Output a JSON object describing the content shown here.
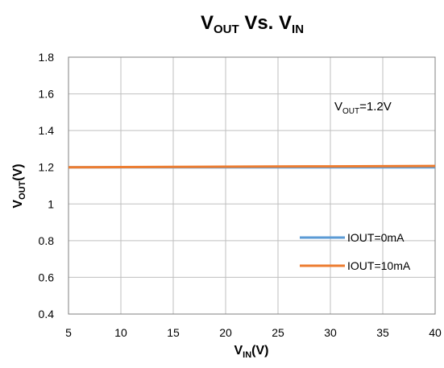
{
  "chart_data": {
    "type": "line",
    "title": {
      "main": "V",
      "sub": "OUT",
      "mid": " Vs. V",
      "sub2": "IN"
    },
    "xlabel": {
      "main": "V",
      "sub": "IN",
      "tail": "(V)"
    },
    "ylabel": {
      "main": "V",
      "sub": "OUT",
      "tail": "(V)"
    },
    "xlim": [
      5,
      40
    ],
    "ylim": [
      0.4,
      1.8
    ],
    "xticks": [
      5,
      10,
      15,
      20,
      25,
      30,
      35,
      40
    ],
    "yticks": [
      0.4,
      0.6,
      0.8,
      1,
      1.2,
      1.4,
      1.6,
      1.8
    ],
    "ytick_labels": [
      "0.4",
      "0.6",
      "0.8",
      "1",
      "1.2",
      "1.4",
      "1.6",
      "1.8"
    ],
    "grid": true,
    "annotation": {
      "main": "V",
      "sub": "OUT",
      "tail": "=1.2V"
    },
    "legend_position": "bottom-right",
    "series": [
      {
        "name": "IOUT=0mA",
        "color": "#5b9bd5",
        "x": [
          5,
          10,
          15,
          20,
          25,
          30,
          35,
          40
        ],
        "y": [
          1.2,
          1.2,
          1.2,
          1.2,
          1.2,
          1.2,
          1.2,
          1.2
        ]
      },
      {
        "name": "IOUT=10mA",
        "color": "#ed7d31",
        "x": [
          5,
          10,
          15,
          20,
          25,
          30,
          35,
          40
        ],
        "y": [
          1.2,
          1.201,
          1.202,
          1.203,
          1.204,
          1.205,
          1.206,
          1.207
        ]
      }
    ]
  }
}
